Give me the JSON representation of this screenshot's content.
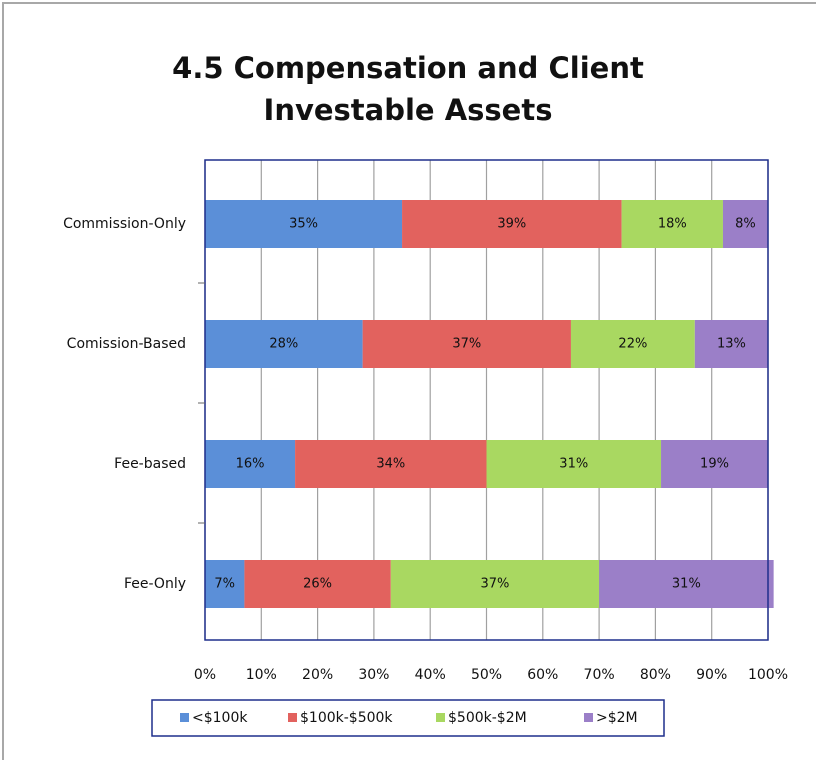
{
  "chart_data": {
    "type": "bar",
    "orientation": "horizontal",
    "stacked": true,
    "title": "4.5 Compensation and Client Investable Assets",
    "categories": [
      "Commission-Only",
      "Comission-Based",
      "Fee-based",
      "Fee-Only"
    ],
    "series": [
      {
        "name": "<$100k",
        "color": "#5b8fd8",
        "values": [
          35,
          28,
          16,
          7
        ],
        "value_labels": [
          "35%",
          "28%",
          "16%",
          "7%"
        ]
      },
      {
        "name": "$100k-$500k",
        "color": "#e2625e",
        "values": [
          39,
          37,
          34,
          26
        ],
        "value_labels": [
          "39%",
          "37%",
          "34%",
          "26%"
        ]
      },
      {
        "name": "$500k-$2M",
        "color": "#a9d861",
        "values": [
          18,
          22,
          31,
          37
        ],
        "value_labels": [
          "18%",
          "22%",
          "31%",
          "37%"
        ]
      },
      {
        "name": ">$2M",
        "color": "#9b7fc8",
        "values": [
          8,
          13,
          19,
          31
        ],
        "value_labels": [
          "8%",
          "13%",
          "19%",
          "31%"
        ]
      }
    ],
    "xlim": [
      0,
      100
    ],
    "xticks": [
      {
        "value": 0,
        "label": "0%"
      },
      {
        "value": 10,
        "label": "10%"
      },
      {
        "value": 20,
        "label": "20%"
      },
      {
        "value": 30,
        "label": "30%"
      },
      {
        "value": 40,
        "label": "40%"
      },
      {
        "value": 50,
        "label": "50%"
      },
      {
        "value": 60,
        "label": "60%"
      },
      {
        "value": 70,
        "label": "70%"
      },
      {
        "value": 80,
        "label": "80%"
      },
      {
        "value": 90,
        "label": "90%"
      },
      {
        "value": 100,
        "label": "100%"
      }
    ],
    "grid": true,
    "legend": "bottom"
  }
}
